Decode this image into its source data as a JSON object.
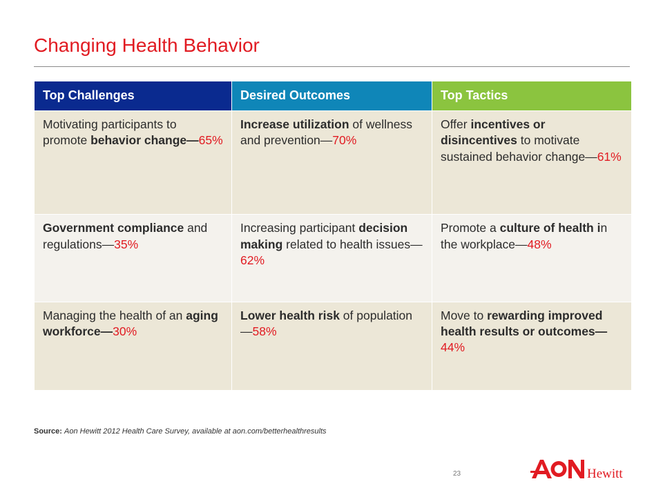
{
  "title": "Changing Health Behavior",
  "headers": [
    "Top Challenges",
    "Desired Outcomes",
    "Top Tactics"
  ],
  "header_colors": [
    "#0a2a8f",
    "#0f86b8",
    "#8bc43f"
  ],
  "rows": [
    [
      [
        "Motivating participants to promote ",
        {
          "b": "behavior change"
        },
        {
          "b": "—"
        },
        {
          "p": "65%"
        }
      ],
      [
        {
          "b": "Increase utilization"
        },
        " of wellness and prevention—",
        {
          "p": "70%"
        }
      ],
      [
        "Offer ",
        {
          "b": "incentives or disincentives"
        },
        " to motivate sustained behavior change—",
        {
          "p": "61%"
        }
      ]
    ],
    [
      [
        {
          "b": "Government compliance"
        },
        " and regulations—",
        {
          "p": "35%"
        }
      ],
      [
        "Increasing participant ",
        {
          "b": "decision making"
        },
        " related to health issues—",
        {
          "p": "62%"
        }
      ],
      [
        "Promote a ",
        {
          "b": "culture of health i"
        },
        "n the workplace—",
        {
          "p": "48%"
        }
      ]
    ],
    [
      [
        "Managing the health of an ",
        {
          "b": "aging workforce—"
        },
        {
          "p": "30%"
        }
      ],
      [
        {
          "b": "Lower health risk"
        },
        " of population—",
        {
          "p": "58%"
        }
      ],
      [
        "Move to ",
        {
          "b": "rewarding improved health results or outcomes—"
        },
        {
          "p": "44%"
        }
      ]
    ]
  ],
  "source": {
    "label": "Source:",
    "text": "Aon Hewitt 2012 Health Care Survey, available at aon.com/betterhealthresults"
  },
  "page_number": "23",
  "logo": {
    "primary": "AON",
    "secondary": "Hewitt",
    "color": "#e11b22"
  }
}
